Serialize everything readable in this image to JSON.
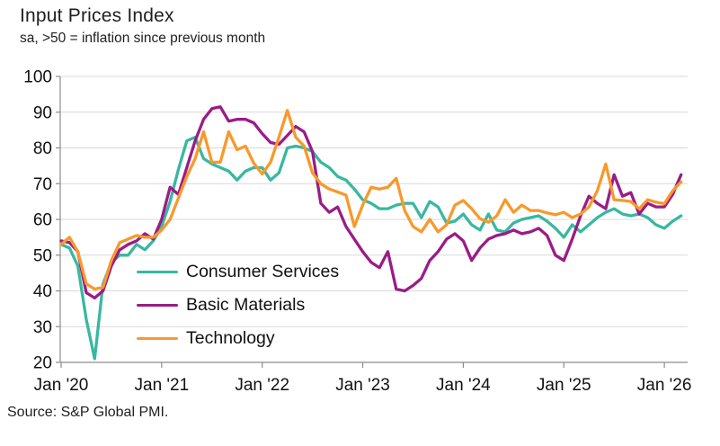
{
  "chart_data": {
    "type": "line",
    "title": "Input Prices Index",
    "subtitle": "sa, >50 = inflation since previous month",
    "source": "Source: S&P Global PMI.",
    "x_unit": "month",
    "x_start": "Jan 2020",
    "x_end": "Mar 2026",
    "x_tick_labels": [
      "Jan '20",
      "Jan '21",
      "Jan '22",
      "Jan '23",
      "Jan '24",
      "Jan '25",
      "Jan '26"
    ],
    "x_tick_month_index": [
      0,
      12,
      24,
      36,
      48,
      60,
      72
    ],
    "ylim": [
      20,
      100
    ],
    "y_ticks": [
      20,
      30,
      40,
      50,
      60,
      70,
      80,
      90,
      100
    ],
    "grid": "horizontal",
    "legend_position": "inside-left-middle",
    "axis_color": "#8c8c8c",
    "gridline_color": "#d9d9d9",
    "series": [
      {
        "name": "Consumer Services",
        "color": "#38b8a1",
        "values": [
          53,
          52,
          47,
          32,
          21,
          42,
          48,
          50,
          50,
          53,
          51.5,
          54,
          58,
          65,
          74,
          82,
          83,
          77,
          75.5,
          74.5,
          73.5,
          71,
          73.5,
          74.5,
          74.5,
          71,
          73,
          80,
          80.5,
          80,
          79,
          76,
          74.5,
          72,
          71,
          68.5,
          65.5,
          64.5,
          63,
          63,
          64,
          64.5,
          64.5,
          60.5,
          65,
          63.5,
          59,
          59.5,
          61.5,
          58.5,
          57,
          61.5,
          57,
          56.5,
          59,
          60,
          60.5,
          61,
          59.5,
          57.5,
          55,
          58.5,
          56.5,
          58.5,
          60.5,
          62,
          63,
          61.5,
          61,
          61.5,
          60.5,
          58.5,
          57.5,
          59.5,
          61
        ]
      },
      {
        "name": "Basic Materials",
        "color": "#9a1c87",
        "values": [
          54,
          53.5,
          51,
          39.5,
          38,
          40,
          47,
          51.5,
          53,
          54,
          56,
          54.5,
          60,
          69,
          67,
          74.5,
          82,
          88,
          91,
          91.5,
          87.5,
          88,
          88,
          87,
          84,
          81.5,
          81,
          83.5,
          86,
          84.5,
          79,
          64.5,
          62,
          63.5,
          58,
          54.5,
          51,
          48,
          46.5,
          51,
          40.5,
          40,
          41.5,
          43.5,
          48.5,
          51,
          54.5,
          56,
          54,
          48.5,
          52,
          54.5,
          55.5,
          56,
          57,
          56,
          56.5,
          57.5,
          55.5,
          50,
          48.5,
          54.5,
          61,
          66.5,
          64.5,
          63,
          72.5,
          66.5,
          67.5,
          61.5,
          64.5,
          63.5,
          63.5,
          67,
          72.5
        ]
      },
      {
        "name": "Technology",
        "color": "#f8992b",
        "values": [
          53,
          55,
          51,
          42,
          40.5,
          41,
          48.5,
          53.5,
          54.5,
          55.5,
          55,
          55,
          57,
          60,
          66,
          72,
          77,
          84.5,
          76,
          76,
          84.5,
          79.5,
          80.5,
          75.7,
          72.7,
          76,
          83,
          90.5,
          83,
          80.5,
          73,
          70,
          68.5,
          67.7,
          66.8,
          58,
          64,
          69,
          68.5,
          69,
          71.5,
          62.5,
          58,
          56.5,
          60,
          56.5,
          58.5,
          64,
          65.3,
          63,
          60.2,
          59.2,
          61,
          65.5,
          62,
          64,
          62.5,
          62.5,
          61.8,
          61.3,
          62,
          60.5,
          61.5,
          63.5,
          68,
          75.5,
          65.5,
          65.3,
          65,
          63,
          65.5,
          64.8,
          64.4,
          68,
          70.5
        ]
      }
    ]
  }
}
